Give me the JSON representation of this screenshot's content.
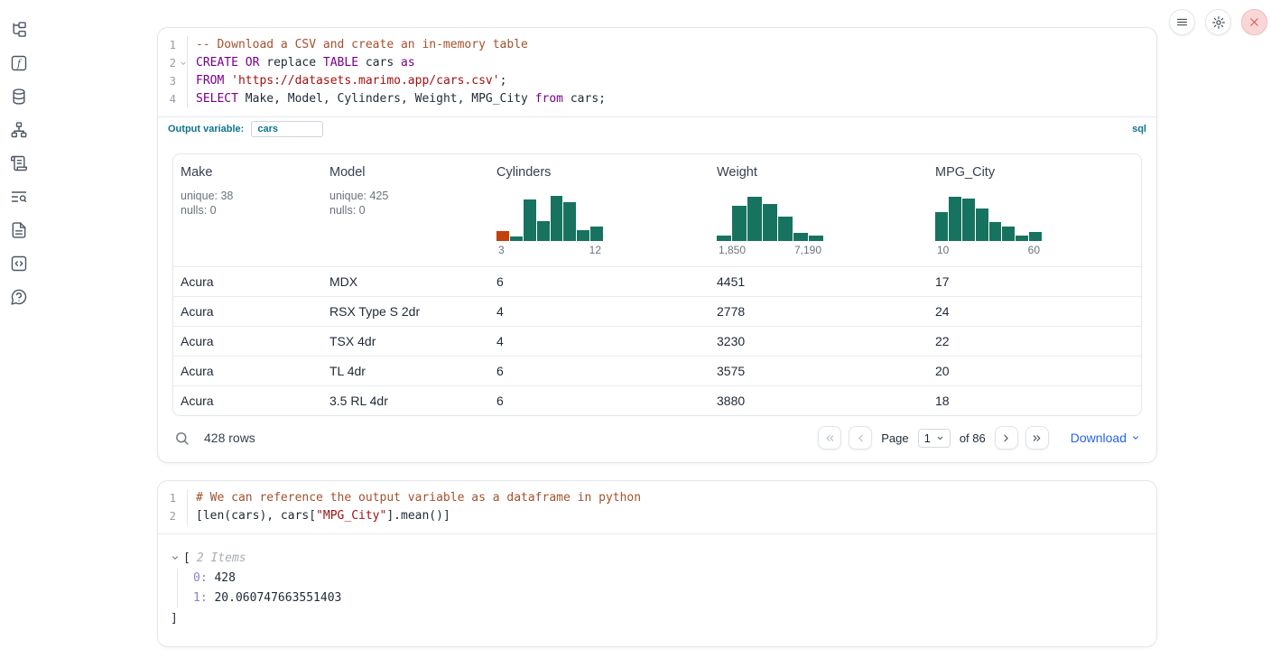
{
  "sidebar": {
    "icons": [
      "file-tree-icon",
      "function-square-icon",
      "datasources-icon",
      "dependency-graph-icon",
      "scratchpad-icon",
      "logs-search-icon",
      "documentation-icon",
      "snippets-icon",
      "help-icon"
    ]
  },
  "topbar": {
    "icons": [
      "menu-icon",
      "settings-gear-icon",
      "shutdown-close-icon"
    ]
  },
  "sql_cell": {
    "lines": [
      {
        "n": "1",
        "tokens": [
          {
            "t": "-- Download a CSV and create an in-memory table"
          }
        ]
      },
      {
        "n": "2",
        "tokens": [
          {
            "t": "CREATE"
          },
          {
            "t": " "
          },
          {
            "t": "OR"
          },
          {
            "t": " replace "
          },
          {
            "t": "TABLE"
          },
          {
            "t": " cars "
          },
          {
            "t": "as"
          }
        ]
      },
      {
        "n": "3",
        "tokens": [
          {
            "t": "FROM"
          },
          {
            "t": " "
          },
          {
            "t": "'https://datasets.marimo.app/cars.csv'"
          },
          {
            "t": ";"
          }
        ]
      },
      {
        "n": "4",
        "tokens": [
          {
            "t": "SELECT"
          },
          {
            "t": " Make, Model, Cylinders, Weight, MPG_City "
          },
          {
            "t": "from"
          },
          {
            "t": " cars;"
          }
        ]
      }
    ],
    "output_variable_label": "Output variable:",
    "output_variable_value": "cars",
    "language_badge": "sql"
  },
  "table": {
    "columns": [
      {
        "name": "Make",
        "unique": "unique: 38",
        "nulls": "nulls: 0"
      },
      {
        "name": "Model",
        "unique": "unique: 425",
        "nulls": "nulls: 0"
      },
      {
        "name": "Cylinders"
      },
      {
        "name": "Weight"
      },
      {
        "name": "MPG_City"
      }
    ],
    "rows": [
      [
        "Acura",
        "MDX",
        "6",
        "4451",
        "17"
      ],
      [
        "Acura",
        "RSX Type S 2dr",
        "4",
        "2778",
        "24"
      ],
      [
        "Acura",
        "TSX 4dr",
        "4",
        "3230",
        "22"
      ],
      [
        "Acura",
        "TL 4dr",
        "6",
        "3575",
        "20"
      ],
      [
        "Acura",
        "3.5 RL 4dr",
        "6",
        "3880",
        "18"
      ]
    ],
    "footer": {
      "row_count": "428 rows",
      "page_label": "Page",
      "page_value": "1",
      "of_label": "of 86",
      "download_label": "Download"
    }
  },
  "chart_data": [
    {
      "type": "histogram",
      "title": "Cylinders",
      "x_range_labels": [
        "3",
        "12"
      ],
      "values": [
        0.22,
        0.1,
        0.88,
        0.42,
        0.97,
        0.82,
        0.23,
        0.3
      ],
      "color": "#17735f",
      "bar_colors": {
        "0": "#c2410c"
      },
      "note": "relative bin heights, x axis 3 to 12"
    },
    {
      "type": "histogram",
      "title": "Weight",
      "x_range_labels": [
        "1,850",
        "7,190"
      ],
      "values": [
        0.12,
        0.75,
        0.95,
        0.78,
        0.52,
        0.18,
        0.12
      ],
      "color": "#17735f",
      "note": "relative bin heights, x axis 1850 to 7190"
    },
    {
      "type": "histogram",
      "title": "MPG_City",
      "x_range_labels": [
        "10",
        "60"
      ],
      "values": [
        0.62,
        0.95,
        0.9,
        0.7,
        0.4,
        0.3,
        0.12,
        0.2
      ],
      "color": "#17735f",
      "note": "relative bin heights, x axis 10 to 60"
    }
  ],
  "python_cell": {
    "lines": [
      {
        "n": "1",
        "tokens": [
          {
            "t": "# We can reference the output variable as a dataframe in python"
          }
        ]
      },
      {
        "n": "2",
        "tokens": [
          {
            "t": "[len(cars), cars["
          },
          {
            "t": "\"MPG_City\""
          },
          {
            "t": "].mean()]"
          }
        ]
      }
    ]
  },
  "tree_output": {
    "open": "[",
    "items_label": "2 Items",
    "entries": [
      {
        "key": "0:",
        "value": "428"
      },
      {
        "key": "1:",
        "value": "20.060747663551403"
      }
    ],
    "close": "]"
  },
  "colors": {
    "accent_blue": "#2563eb",
    "teal_label": "#0e7490",
    "hist_green": "#17735f",
    "hist_orange": "#c2410c",
    "keyword_purple": "#770088",
    "string_red": "#a11111",
    "comment_brown": "#a0522d"
  }
}
